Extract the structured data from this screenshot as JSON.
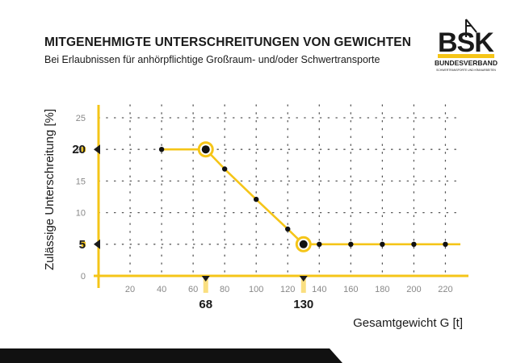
{
  "header": {
    "title": "MITGENEHMIGTE UNTERSCHREITUNGEN VON GEWICHTEN",
    "subtitle": "Bei Erlaubnissen für anhörpflichtige Großraum- und/oder Schwertransporte"
  },
  "logo": {
    "brand": "BSK",
    "line1": "BUNDESVERBAND",
    "line2": "SCHWERTRANSPORTE UND KRANARBEITEN"
  },
  "colors": {
    "accent": "#f5c518",
    "text": "#1a1a1a",
    "grid": "#555555",
    "tick": "#888888"
  },
  "chart_data": {
    "type": "line",
    "xlabel": "Gesamtgewicht G [t]",
    "ylabel": "Zulässige Unterschreitung [%]",
    "xlim": [
      0,
      225
    ],
    "ylim": [
      0,
      25
    ],
    "x_ticks": [
      20,
      40,
      60,
      80,
      100,
      120,
      140,
      160,
      180,
      200,
      220
    ],
    "y_ticks": [
      0,
      5,
      10,
      15,
      20,
      25
    ],
    "grid": true,
    "series": [
      {
        "points": [
          {
            "x": 40,
            "y": 20
          },
          {
            "x": 68,
            "y": 20
          },
          {
            "x": 80,
            "y": 16.9
          },
          {
            "x": 100,
            "y": 12.1
          },
          {
            "x": 120,
            "y": 7.4
          },
          {
            "x": 130,
            "y": 5
          },
          {
            "x": 140,
            "y": 5
          },
          {
            "x": 160,
            "y": 5
          },
          {
            "x": 180,
            "y": 5
          },
          {
            "x": 200,
            "y": 5
          },
          {
            "x": 220,
            "y": 5
          }
        ]
      }
    ],
    "highlight_points": [
      {
        "x": 68,
        "y": 20
      },
      {
        "x": 130,
        "y": 5
      }
    ],
    "annotations": {
      "x_markers": [
        {
          "x": 68,
          "label": "68"
        },
        {
          "x": 130,
          "label": "130"
        }
      ],
      "y_markers": [
        {
          "y": 20,
          "label": "20"
        },
        {
          "y": 5,
          "label": "5"
        }
      ]
    }
  }
}
